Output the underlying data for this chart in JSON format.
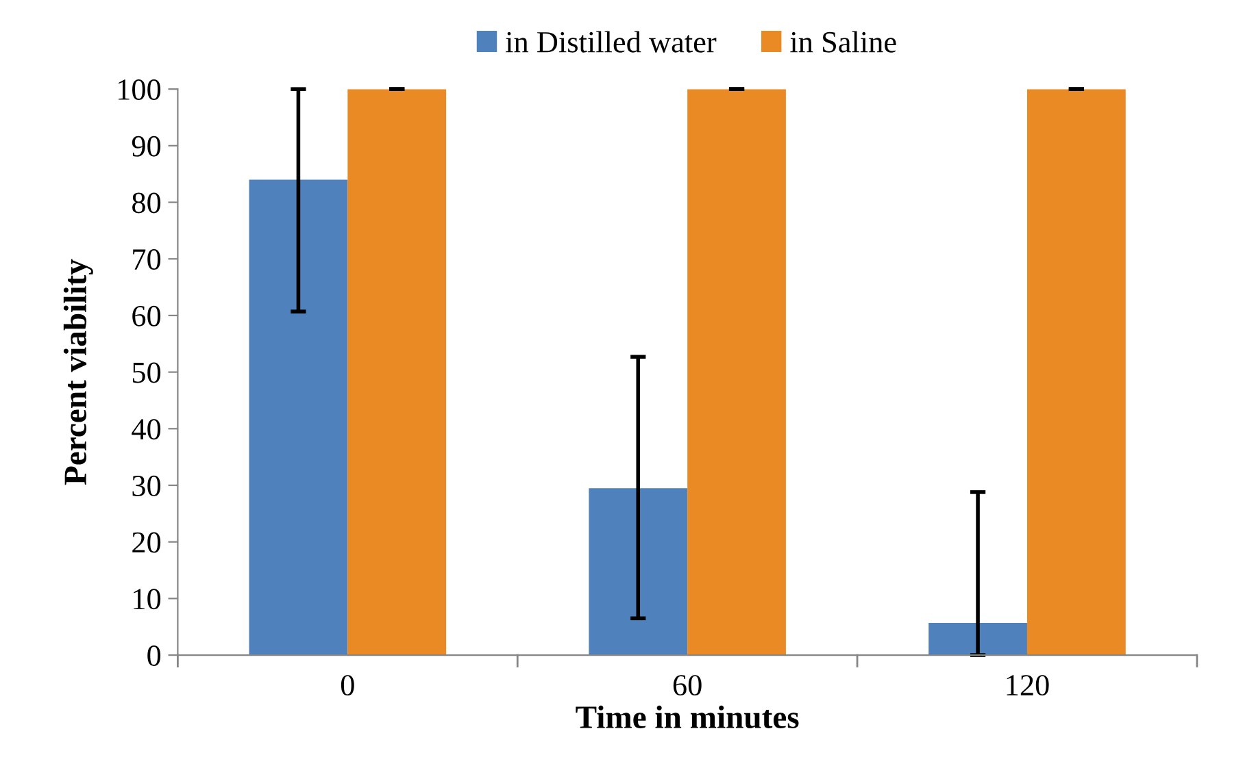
{
  "chart_data": {
    "type": "bar",
    "xlabel": "Time in minutes",
    "ylabel": "Percent viability",
    "categories": [
      "0",
      "60",
      "120"
    ],
    "series": [
      {
        "name": "in Distilled water",
        "color": "#4f81bd",
        "values": [
          84,
          29.5,
          5.7
        ],
        "errors": [
          [
            60.7,
            100
          ],
          [
            6.5,
            52.7
          ],
          [
            0,
            28.8
          ]
        ]
      },
      {
        "name": "in Saline",
        "color": "#e98a25",
        "values": [
          100,
          100,
          100
        ],
        "errors": [
          [
            100,
            100
          ],
          [
            100,
            100
          ],
          [
            100,
            100
          ]
        ]
      }
    ],
    "ylim": [
      0,
      100
    ],
    "yticks": [
      0,
      10,
      20,
      30,
      40,
      50,
      60,
      70,
      80,
      90,
      100
    ],
    "grid": false,
    "legend": "top"
  }
}
